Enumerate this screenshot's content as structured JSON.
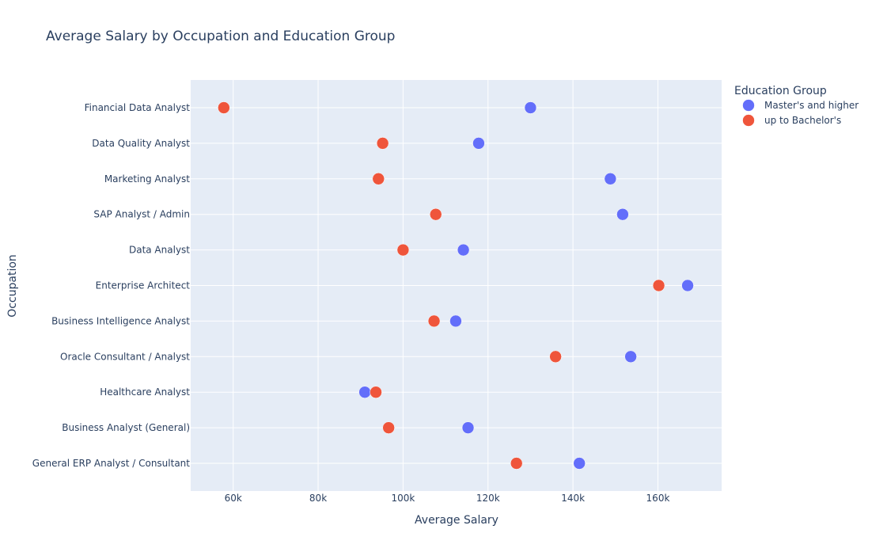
{
  "chart_data": {
    "type": "scatter",
    "title": "Average Salary by Occupation and Education Group",
    "xlabel": "Average Salary",
    "ylabel": "Occupation",
    "xlim": [
      50000,
      175000
    ],
    "xticks": [
      60000,
      80000,
      100000,
      120000,
      140000,
      160000
    ],
    "xtick_labels": [
      "60k",
      "80k",
      "100k",
      "120k",
      "140k",
      "160k"
    ],
    "categories": [
      "Financial Data Analyst",
      "Data Quality Analyst",
      "Marketing Analyst",
      "SAP Analyst / Admin",
      "Data Analyst",
      "Enterprise Architect",
      "Business Intelligence Analyst",
      "Oracle Consultant / Analyst",
      "Healthcare Analyst",
      "Business Analyst (General)",
      "General ERP Analyst / Consultant"
    ],
    "grid": true,
    "legend": {
      "title": "Education Group",
      "position": "top-right"
    },
    "series": [
      {
        "name": "Master's and higher",
        "color": "#636efa",
        "values": [
          130000,
          117800,
          148800,
          151700,
          114200,
          167000,
          112400,
          153600,
          91000,
          115300,
          141500
        ]
      },
      {
        "name": "up to Bachelor's",
        "color": "#ef553b",
        "values": [
          57800,
          95200,
          94200,
          107700,
          100000,
          160200,
          107300,
          135900,
          93600,
          96600,
          126700
        ]
      }
    ]
  }
}
